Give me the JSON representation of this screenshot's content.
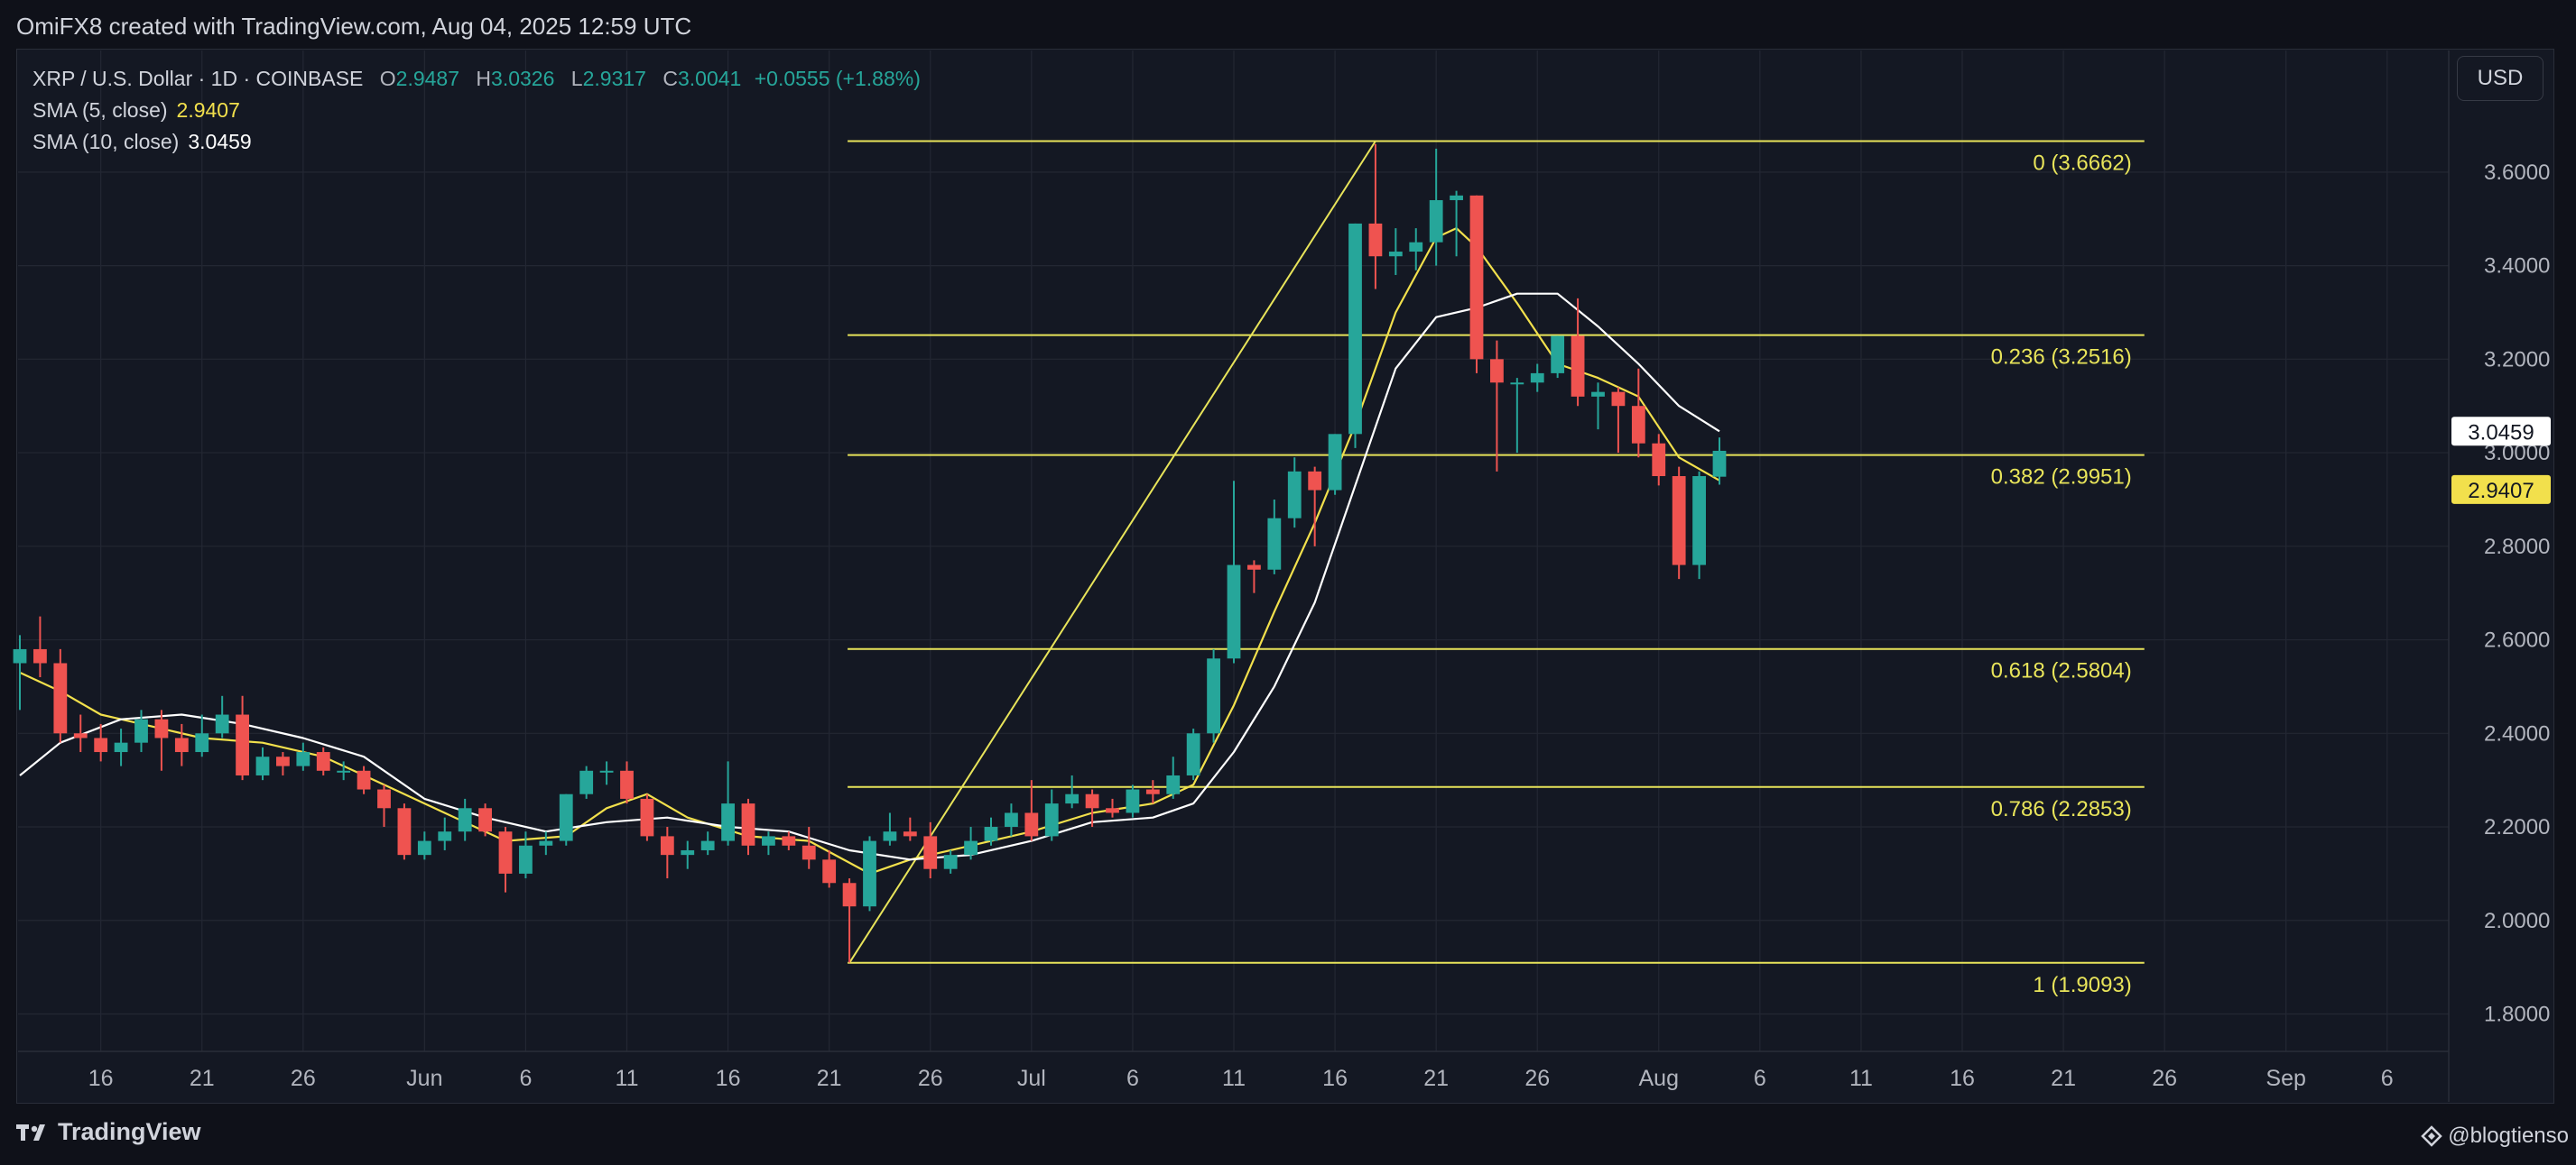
{
  "header": {
    "attribution": "OmiFX8 created with TradingView.com, Aug 04, 2025 12:59 UTC"
  },
  "legend": {
    "symbol": "XRP / U.S. Dollar · 1D · COINBASE",
    "o_label": "O",
    "o_value": "2.9487",
    "h_label": "H",
    "h_value": "3.0326",
    "l_label": "L",
    "l_value": "2.9317",
    "c_label": "C",
    "c_value": "3.0041",
    "change": "+0.0555 (+1.88%)",
    "sma5_name": "SMA (5, close)",
    "sma5_value": "2.9407",
    "sma10_name": "SMA (10, close)",
    "sma10_value": "3.0459"
  },
  "currency_button": "USD",
  "footer": {
    "brand": "TradingView",
    "author": "@blogtienso"
  },
  "colors": {
    "up": "#26a69a",
    "down": "#ef5350",
    "sma5": "#f2e04c",
    "sma10": "#ffffff",
    "fib": "#e8e45a",
    "grid": "#232733",
    "background": "#141823"
  },
  "chart_data": {
    "type": "candlestick",
    "title": "XRP / U.S. Dollar · 1D · COINBASE",
    "xlabel": "",
    "ylabel": "",
    "ylim": [
      1.72,
      3.86
    ],
    "grid": true,
    "y_ticks": [
      "3.6000",
      "3.4000",
      "3.2000",
      "3.0000",
      "2.8000",
      "2.6000",
      "2.4000",
      "2.2000",
      "2.0000",
      "1.8000"
    ],
    "x_ticks": [
      {
        "date": "2025-05-16",
        "label": "16"
      },
      {
        "date": "2025-05-21",
        "label": "21"
      },
      {
        "date": "2025-05-26",
        "label": "26"
      },
      {
        "date": "2025-06-01",
        "label": "Jun"
      },
      {
        "date": "2025-06-06",
        "label": "6"
      },
      {
        "date": "2025-06-11",
        "label": "11"
      },
      {
        "date": "2025-06-16",
        "label": "16"
      },
      {
        "date": "2025-06-21",
        "label": "21"
      },
      {
        "date": "2025-06-26",
        "label": "26"
      },
      {
        "date": "2025-07-01",
        "label": "Jul"
      },
      {
        "date": "2025-07-06",
        "label": "6"
      },
      {
        "date": "2025-07-11",
        "label": "11"
      },
      {
        "date": "2025-07-16",
        "label": "16"
      },
      {
        "date": "2025-07-21",
        "label": "21"
      },
      {
        "date": "2025-07-26",
        "label": "26"
      },
      {
        "date": "2025-08-01",
        "label": "Aug"
      },
      {
        "date": "2025-08-06",
        "label": "6"
      },
      {
        "date": "2025-08-11",
        "label": "11"
      },
      {
        "date": "2025-08-16",
        "label": "16"
      },
      {
        "date": "2025-08-21",
        "label": "21"
      },
      {
        "date": "2025-08-26",
        "label": "26"
      },
      {
        "date": "2025-09-01",
        "label": "Sep"
      },
      {
        "date": "2025-09-06",
        "label": "6"
      }
    ],
    "x_range": [
      "2025-05-12",
      "2025-09-09"
    ],
    "candles": [
      {
        "date": "2025-05-12",
        "o": 2.55,
        "h": 2.61,
        "l": 2.45,
        "c": 2.58
      },
      {
        "date": "2025-05-13",
        "o": 2.58,
        "h": 2.65,
        "l": 2.52,
        "c": 2.55
      },
      {
        "date": "2025-05-14",
        "o": 2.55,
        "h": 2.58,
        "l": 2.38,
        "c": 2.4
      },
      {
        "date": "2025-05-15",
        "o": 2.4,
        "h": 2.44,
        "l": 2.36,
        "c": 2.39
      },
      {
        "date": "2025-05-16",
        "o": 2.39,
        "h": 2.42,
        "l": 2.34,
        "c": 2.36
      },
      {
        "date": "2025-05-17",
        "o": 2.36,
        "h": 2.41,
        "l": 2.33,
        "c": 2.38
      },
      {
        "date": "2025-05-18",
        "o": 2.38,
        "h": 2.45,
        "l": 2.36,
        "c": 2.43
      },
      {
        "date": "2025-05-19",
        "o": 2.43,
        "h": 2.45,
        "l": 2.32,
        "c": 2.39
      },
      {
        "date": "2025-05-20",
        "o": 2.39,
        "h": 2.42,
        "l": 2.33,
        "c": 2.36
      },
      {
        "date": "2025-05-21",
        "o": 2.36,
        "h": 2.44,
        "l": 2.35,
        "c": 2.4
      },
      {
        "date": "2025-05-22",
        "o": 2.4,
        "h": 2.48,
        "l": 2.39,
        "c": 2.44
      },
      {
        "date": "2025-05-23",
        "o": 2.44,
        "h": 2.48,
        "l": 2.3,
        "c": 2.31
      },
      {
        "date": "2025-05-24",
        "o": 2.31,
        "h": 2.37,
        "l": 2.3,
        "c": 2.35
      },
      {
        "date": "2025-05-25",
        "o": 2.35,
        "h": 2.36,
        "l": 2.31,
        "c": 2.33
      },
      {
        "date": "2025-05-26",
        "o": 2.33,
        "h": 2.38,
        "l": 2.32,
        "c": 2.36
      },
      {
        "date": "2025-05-27",
        "o": 2.36,
        "h": 2.37,
        "l": 2.31,
        "c": 2.32
      },
      {
        "date": "2025-05-28",
        "o": 2.32,
        "h": 2.34,
        "l": 2.3,
        "c": 2.32
      },
      {
        "date": "2025-05-29",
        "o": 2.32,
        "h": 2.33,
        "l": 2.27,
        "c": 2.28
      },
      {
        "date": "2025-05-30",
        "o": 2.28,
        "h": 2.29,
        "l": 2.2,
        "c": 2.24
      },
      {
        "date": "2025-05-31",
        "o": 2.24,
        "h": 2.25,
        "l": 2.13,
        "c": 2.14
      },
      {
        "date": "2025-06-01",
        "o": 2.14,
        "h": 2.19,
        "l": 2.13,
        "c": 2.17
      },
      {
        "date": "2025-06-02",
        "o": 2.17,
        "h": 2.22,
        "l": 2.15,
        "c": 2.19
      },
      {
        "date": "2025-06-03",
        "o": 2.19,
        "h": 2.26,
        "l": 2.17,
        "c": 2.24
      },
      {
        "date": "2025-06-04",
        "o": 2.24,
        "h": 2.25,
        "l": 2.18,
        "c": 2.19
      },
      {
        "date": "2025-06-05",
        "o": 2.19,
        "h": 2.2,
        "l": 2.06,
        "c": 2.1
      },
      {
        "date": "2025-06-06",
        "o": 2.1,
        "h": 2.19,
        "l": 2.09,
        "c": 2.16
      },
      {
        "date": "2025-06-07",
        "o": 2.16,
        "h": 2.19,
        "l": 2.14,
        "c": 2.17
      },
      {
        "date": "2025-06-08",
        "o": 2.17,
        "h": 2.27,
        "l": 2.16,
        "c": 2.27
      },
      {
        "date": "2025-06-09",
        "o": 2.27,
        "h": 2.33,
        "l": 2.26,
        "c": 2.32
      },
      {
        "date": "2025-06-10",
        "o": 2.32,
        "h": 2.34,
        "l": 2.29,
        "c": 2.32
      },
      {
        "date": "2025-06-11",
        "o": 2.32,
        "h": 2.34,
        "l": 2.25,
        "c": 2.26
      },
      {
        "date": "2025-06-12",
        "o": 2.26,
        "h": 2.27,
        "l": 2.17,
        "c": 2.18
      },
      {
        "date": "2025-06-13",
        "o": 2.18,
        "h": 2.2,
        "l": 2.09,
        "c": 2.14
      },
      {
        "date": "2025-06-14",
        "o": 2.14,
        "h": 2.17,
        "l": 2.11,
        "c": 2.15
      },
      {
        "date": "2025-06-15",
        "o": 2.15,
        "h": 2.19,
        "l": 2.14,
        "c": 2.17
      },
      {
        "date": "2025-06-16",
        "o": 2.17,
        "h": 2.34,
        "l": 2.16,
        "c": 2.25
      },
      {
        "date": "2025-06-17",
        "o": 2.25,
        "h": 2.26,
        "l": 2.14,
        "c": 2.16
      },
      {
        "date": "2025-06-18",
        "o": 2.16,
        "h": 2.19,
        "l": 2.14,
        "c": 2.18
      },
      {
        "date": "2025-06-19",
        "o": 2.18,
        "h": 2.19,
        "l": 2.15,
        "c": 2.16
      },
      {
        "date": "2025-06-20",
        "o": 2.16,
        "h": 2.2,
        "l": 2.11,
        "c": 2.13
      },
      {
        "date": "2025-06-21",
        "o": 2.13,
        "h": 2.15,
        "l": 2.07,
        "c": 2.08
      },
      {
        "date": "2025-06-22",
        "o": 2.08,
        "h": 2.09,
        "l": 1.91,
        "c": 2.03
      },
      {
        "date": "2025-06-23",
        "o": 2.03,
        "h": 2.18,
        "l": 2.02,
        "c": 2.17
      },
      {
        "date": "2025-06-24",
        "o": 2.17,
        "h": 2.23,
        "l": 2.16,
        "c": 2.19
      },
      {
        "date": "2025-06-25",
        "o": 2.19,
        "h": 2.22,
        "l": 2.17,
        "c": 2.18
      },
      {
        "date": "2025-06-26",
        "o": 2.18,
        "h": 2.21,
        "l": 2.09,
        "c": 2.11
      },
      {
        "date": "2025-06-27",
        "o": 2.11,
        "h": 2.15,
        "l": 2.1,
        "c": 2.14
      },
      {
        "date": "2025-06-28",
        "o": 2.14,
        "h": 2.2,
        "l": 2.13,
        "c": 2.17
      },
      {
        "date": "2025-06-29",
        "o": 2.17,
        "h": 2.22,
        "l": 2.16,
        "c": 2.2
      },
      {
        "date": "2025-06-30",
        "o": 2.2,
        "h": 2.25,
        "l": 2.18,
        "c": 2.23
      },
      {
        "date": "2025-07-01",
        "o": 2.23,
        "h": 2.3,
        "l": 2.17,
        "c": 2.18
      },
      {
        "date": "2025-07-02",
        "o": 2.18,
        "h": 2.28,
        "l": 2.17,
        "c": 2.25
      },
      {
        "date": "2025-07-03",
        "o": 2.25,
        "h": 2.31,
        "l": 2.24,
        "c": 2.27
      },
      {
        "date": "2025-07-04",
        "o": 2.27,
        "h": 2.28,
        "l": 2.2,
        "c": 2.24
      },
      {
        "date": "2025-07-05",
        "o": 2.24,
        "h": 2.26,
        "l": 2.22,
        "c": 2.23
      },
      {
        "date": "2025-07-06",
        "o": 2.23,
        "h": 2.29,
        "l": 2.22,
        "c": 2.28
      },
      {
        "date": "2025-07-07",
        "o": 2.28,
        "h": 2.3,
        "l": 2.25,
        "c": 2.27
      },
      {
        "date": "2025-07-08",
        "o": 2.27,
        "h": 2.35,
        "l": 2.26,
        "c": 2.31
      },
      {
        "date": "2025-07-09",
        "o": 2.31,
        "h": 2.41,
        "l": 2.3,
        "c": 2.4
      },
      {
        "date": "2025-07-10",
        "o": 2.4,
        "h": 2.58,
        "l": 2.38,
        "c": 2.56
      },
      {
        "date": "2025-07-11",
        "o": 2.56,
        "h": 2.94,
        "l": 2.55,
        "c": 2.76
      },
      {
        "date": "2025-07-12",
        "o": 2.76,
        "h": 2.77,
        "l": 2.7,
        "c": 2.75
      },
      {
        "date": "2025-07-13",
        "o": 2.75,
        "h": 2.9,
        "l": 2.74,
        "c": 2.86
      },
      {
        "date": "2025-07-14",
        "o": 2.86,
        "h": 2.99,
        "l": 2.84,
        "c": 2.96
      },
      {
        "date": "2025-07-15",
        "o": 2.96,
        "h": 2.97,
        "l": 2.8,
        "c": 2.92
      },
      {
        "date": "2025-07-16",
        "o": 2.92,
        "h": 3.04,
        "l": 2.91,
        "c": 3.04
      },
      {
        "date": "2025-07-17",
        "o": 3.04,
        "h": 3.49,
        "l": 3.01,
        "c": 3.49
      },
      {
        "date": "2025-07-18",
        "o": 3.49,
        "h": 3.66,
        "l": 3.35,
        "c": 3.42
      },
      {
        "date": "2025-07-19",
        "o": 3.42,
        "h": 3.48,
        "l": 3.38,
        "c": 3.43
      },
      {
        "date": "2025-07-20",
        "o": 3.43,
        "h": 3.48,
        "l": 3.39,
        "c": 3.45
      },
      {
        "date": "2025-07-21",
        "o": 3.45,
        "h": 3.65,
        "l": 3.4,
        "c": 3.54
      },
      {
        "date": "2025-07-22",
        "o": 3.54,
        "h": 3.56,
        "l": 3.42,
        "c": 3.55
      },
      {
        "date": "2025-07-23",
        "o": 3.55,
        "h": 3.55,
        "l": 3.17,
        "c": 3.2
      },
      {
        "date": "2025-07-24",
        "o": 3.2,
        "h": 3.24,
        "l": 2.96,
        "c": 3.15
      },
      {
        "date": "2025-07-25",
        "o": 3.15,
        "h": 3.16,
        "l": 3.0,
        "c": 3.15
      },
      {
        "date": "2025-07-26",
        "o": 3.15,
        "h": 3.19,
        "l": 3.13,
        "c": 3.17
      },
      {
        "date": "2025-07-27",
        "o": 3.17,
        "h": 3.25,
        "l": 3.16,
        "c": 3.25
      },
      {
        "date": "2025-07-28",
        "o": 3.25,
        "h": 3.33,
        "l": 3.1,
        "c": 3.12
      },
      {
        "date": "2025-07-29",
        "o": 3.12,
        "h": 3.15,
        "l": 3.05,
        "c": 3.13
      },
      {
        "date": "2025-07-30",
        "o": 3.13,
        "h": 3.14,
        "l": 3.0,
        "c": 3.1
      },
      {
        "date": "2025-07-31",
        "o": 3.1,
        "h": 3.18,
        "l": 2.99,
        "c": 3.02
      },
      {
        "date": "2025-08-01",
        "o": 3.02,
        "h": 3.04,
        "l": 2.93,
        "c": 2.95
      },
      {
        "date": "2025-08-02",
        "o": 2.95,
        "h": 2.97,
        "l": 2.73,
        "c": 2.76
      },
      {
        "date": "2025-08-03",
        "o": 2.76,
        "h": 2.96,
        "l": 2.73,
        "c": 2.95
      },
      {
        "date": "2025-08-04",
        "o": 2.9487,
        "h": 3.0326,
        "l": 2.9317,
        "c": 3.0041
      }
    ],
    "series": [
      {
        "name": "SMA (5, close)",
        "color": "#f2e04c",
        "points": [
          [
            "2025-05-12",
            2.53
          ],
          [
            "2025-05-14",
            2.49
          ],
          [
            "2025-05-16",
            2.44
          ],
          [
            "2025-05-19",
            2.41
          ],
          [
            "2025-05-21",
            2.39
          ],
          [
            "2025-05-24",
            2.38
          ],
          [
            "2025-05-27",
            2.35
          ],
          [
            "2025-05-30",
            2.29
          ],
          [
            "2025-06-02",
            2.23
          ],
          [
            "2025-06-05",
            2.17
          ],
          [
            "2025-06-08",
            2.18
          ],
          [
            "2025-06-10",
            2.24
          ],
          [
            "2025-06-12",
            2.27
          ],
          [
            "2025-06-14",
            2.22
          ],
          [
            "2025-06-17",
            2.18
          ],
          [
            "2025-06-20",
            2.17
          ],
          [
            "2025-06-23",
            2.1
          ],
          [
            "2025-06-25",
            2.13
          ],
          [
            "2025-06-28",
            2.16
          ],
          [
            "2025-07-01",
            2.19
          ],
          [
            "2025-07-04",
            2.23
          ],
          [
            "2025-07-07",
            2.25
          ],
          [
            "2025-07-09",
            2.29
          ],
          [
            "2025-07-11",
            2.46
          ],
          [
            "2025-07-13",
            2.66
          ],
          [
            "2025-07-15",
            2.85
          ],
          [
            "2025-07-17",
            3.06
          ],
          [
            "2025-07-19",
            3.3
          ],
          [
            "2025-07-21",
            3.46
          ],
          [
            "2025-07-22",
            3.48
          ],
          [
            "2025-07-23",
            3.44
          ],
          [
            "2025-07-25",
            3.32
          ],
          [
            "2025-07-27",
            3.19
          ],
          [
            "2025-07-29",
            3.16
          ],
          [
            "2025-07-31",
            3.12
          ],
          [
            "2025-08-02",
            2.99
          ],
          [
            "2025-08-04",
            2.9407
          ]
        ]
      },
      {
        "name": "SMA (10, close)",
        "color": "#ffffff",
        "points": [
          [
            "2025-05-12",
            2.31
          ],
          [
            "2025-05-14",
            2.38
          ],
          [
            "2025-05-17",
            2.43
          ],
          [
            "2025-05-20",
            2.44
          ],
          [
            "2025-05-23",
            2.42
          ],
          [
            "2025-05-26",
            2.39
          ],
          [
            "2025-05-29",
            2.35
          ],
          [
            "2025-06-01",
            2.26
          ],
          [
            "2025-06-04",
            2.22
          ],
          [
            "2025-06-07",
            2.19
          ],
          [
            "2025-06-10",
            2.21
          ],
          [
            "2025-06-13",
            2.22
          ],
          [
            "2025-06-16",
            2.2
          ],
          [
            "2025-06-19",
            2.19
          ],
          [
            "2025-06-22",
            2.15
          ],
          [
            "2025-06-25",
            2.13
          ],
          [
            "2025-06-28",
            2.14
          ],
          [
            "2025-07-01",
            2.17
          ],
          [
            "2025-07-04",
            2.21
          ],
          [
            "2025-07-07",
            2.22
          ],
          [
            "2025-07-09",
            2.25
          ],
          [
            "2025-07-11",
            2.36
          ],
          [
            "2025-07-13",
            2.5
          ],
          [
            "2025-07-15",
            2.68
          ],
          [
            "2025-07-17",
            2.93
          ],
          [
            "2025-07-19",
            3.18
          ],
          [
            "2025-07-21",
            3.29
          ],
          [
            "2025-07-23",
            3.31
          ],
          [
            "2025-07-25",
            3.34
          ],
          [
            "2025-07-27",
            3.34
          ],
          [
            "2025-07-29",
            3.27
          ],
          [
            "2025-07-31",
            3.19
          ],
          [
            "2025-08-02",
            3.1
          ],
          [
            "2025-08-04",
            3.0459
          ]
        ]
      }
    ],
    "fib_retracement": {
      "anchor_low": {
        "date": "2025-06-22",
        "price": 1.9093
      },
      "anchor_high": {
        "date": "2025-07-18",
        "price": 3.6662
      },
      "right_date": "2025-08-25",
      "levels": [
        {
          "ratio": "0",
          "price": 3.6662,
          "label": "0 (3.6662)"
        },
        {
          "ratio": "0.236",
          "price": 3.2516,
          "label": "0.236 (3.2516)"
        },
        {
          "ratio": "0.382",
          "price": 2.9951,
          "label": "0.382 (2.9951)"
        },
        {
          "ratio": "0.618",
          "price": 2.5804,
          "label": "0.618 (2.5804)"
        },
        {
          "ratio": "0.786",
          "price": 2.2853,
          "label": "0.786 (2.2853)"
        },
        {
          "ratio": "1",
          "price": 1.9093,
          "label": "1 (1.9093)"
        }
      ]
    },
    "price_labels": [
      {
        "price": 3.0459,
        "text": "3.0459",
        "bg": "#ffffff",
        "fg": "#131722"
      },
      {
        "price": 2.9407,
        "text": "2.9407",
        "bg": "#f2e04c",
        "fg": "#131722"
      }
    ]
  }
}
